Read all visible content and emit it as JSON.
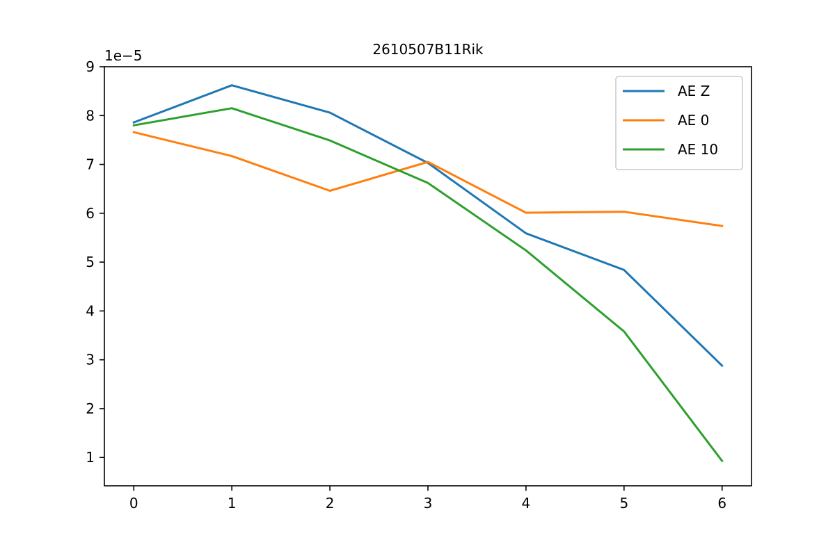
{
  "chart_data": {
    "type": "line",
    "title": "2610507B11Rik",
    "xlabel": "",
    "ylabel": "",
    "scale_label": "1e−5",
    "x": [
      0,
      1,
      2,
      3,
      4,
      5,
      6
    ],
    "x_tick_labels": [
      "0",
      "1",
      "2",
      "3",
      "4",
      "5",
      "6"
    ],
    "y_tick_labels": [
      "1",
      "2",
      "3",
      "4",
      "5",
      "6",
      "7",
      "8",
      "9"
    ],
    "xlim": [
      -0.3,
      6.3
    ],
    "ylim": [
      4.2e-06,
      9e-05
    ],
    "grid": false,
    "legend_position": "top-right",
    "series": [
      {
        "name": "AE Z",
        "color": "#1f77b4",
        "values": [
          7.86e-05,
          8.62e-05,
          8.06e-05,
          7.03e-05,
          5.59e-05,
          4.84e-05,
          2.88e-05
        ]
      },
      {
        "name": "AE 0",
        "color": "#ff7f0e",
        "values": [
          7.66e-05,
          7.17e-05,
          6.46e-05,
          7.05e-05,
          6.01e-05,
          6.03e-05,
          5.74e-05
        ]
      },
      {
        "name": "AE 10",
        "color": "#2ca02c",
        "values": [
          7.8e-05,
          8.15e-05,
          7.49e-05,
          6.62e-05,
          5.24e-05,
          3.58e-05,
          9.3e-06
        ]
      }
    ]
  }
}
